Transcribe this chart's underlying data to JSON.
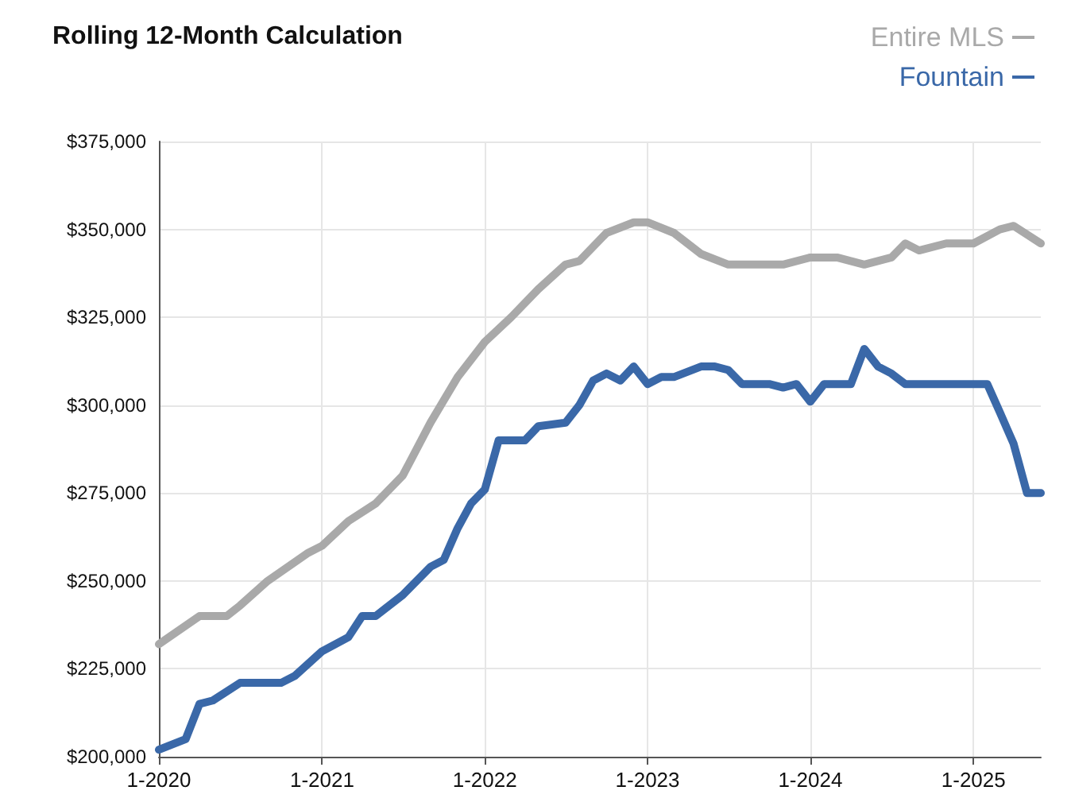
{
  "chart_data": {
    "type": "line",
    "title": "Rolling 12-Month Calculation",
    "legend": "top right",
    "grid": true,
    "marker": "none",
    "line_style": "solid",
    "xlim": [
      "2020-01",
      "2025-06"
    ],
    "xticks": [
      {
        "value": "2020-01",
        "label": "1-2020"
      },
      {
        "value": "2021-01",
        "label": "1-2021"
      },
      {
        "value": "2022-01",
        "label": "1-2022"
      },
      {
        "value": "2023-01",
        "label": "1-2023"
      },
      {
        "value": "2024-01",
        "label": "1-2024"
      },
      {
        "value": "2025-01",
        "label": "1-2025"
      }
    ],
    "ylim": [
      200000,
      375000
    ],
    "yticks": [
      {
        "value": 200000,
        "label": "$200,000"
      },
      {
        "value": 225000,
        "label": "$225,000"
      },
      {
        "value": 250000,
        "label": "$250,000"
      },
      {
        "value": 275000,
        "label": "$275,000"
      },
      {
        "value": 300000,
        "label": "$300,000"
      },
      {
        "value": 325000,
        "label": "$325,000"
      },
      {
        "value": 350000,
        "label": "$350,000"
      },
      {
        "value": 375000,
        "label": "$375,000"
      }
    ],
    "series": [
      {
        "name": "Entire MLS",
        "color": "#a9a9a9",
        "x": [
          "2020-01",
          "2020-04",
          "2020-06",
          "2020-07",
          "2020-09",
          "2020-12",
          "2021-01",
          "2021-03",
          "2021-05",
          "2021-07",
          "2021-09",
          "2021-11",
          "2022-01",
          "2022-03",
          "2022-05",
          "2022-07",
          "2022-08",
          "2022-10",
          "2022-12",
          "2023-01",
          "2023-03",
          "2023-05",
          "2023-07",
          "2023-09",
          "2023-11",
          "2024-01",
          "2024-03",
          "2024-05",
          "2024-07",
          "2024-08",
          "2024-09",
          "2024-11",
          "2025-01",
          "2025-03",
          "2025-04",
          "2025-06"
        ],
        "values": [
          232000,
          240000,
          240000,
          243000,
          250000,
          258000,
          260000,
          267000,
          272000,
          280000,
          295000,
          308000,
          318000,
          325000,
          333000,
          340000,
          341000,
          349000,
          352000,
          352000,
          349000,
          343000,
          340000,
          340000,
          340000,
          342000,
          342000,
          340000,
          342000,
          346000,
          344000,
          346000,
          346000,
          350000,
          351000,
          346000
        ]
      },
      {
        "name": "Fountain",
        "color": "#3a68a8",
        "x": [
          "2020-01",
          "2020-03",
          "2020-04",
          "2020-05",
          "2020-07",
          "2020-10",
          "2020-11",
          "2021-01",
          "2021-03",
          "2021-04",
          "2021-05",
          "2021-07",
          "2021-09",
          "2021-10",
          "2021-11",
          "2021-12",
          "2022-01",
          "2022-02",
          "2022-04",
          "2022-05",
          "2022-07",
          "2022-08",
          "2022-09",
          "2022-10",
          "2022-11",
          "2022-12",
          "2023-01",
          "2023-02",
          "2023-03",
          "2023-05",
          "2023-06",
          "2023-07",
          "2023-08",
          "2023-10",
          "2023-11",
          "2023-12",
          "2024-01",
          "2024-02",
          "2024-04",
          "2024-05",
          "2024-06",
          "2024-07",
          "2024-08",
          "2025-01",
          "2025-02",
          "2025-03",
          "2025-04",
          "2025-05",
          "2025-06"
        ],
        "values": [
          202000,
          205000,
          215000,
          216000,
          221000,
          221000,
          223000,
          230000,
          234000,
          240000,
          240000,
          246000,
          254000,
          256000,
          265000,
          272000,
          276000,
          290000,
          290000,
          294000,
          295000,
          300000,
          307000,
          309000,
          307000,
          311000,
          306000,
          308000,
          308000,
          311000,
          311000,
          310000,
          306000,
          306000,
          305000,
          306000,
          301000,
          306000,
          306000,
          316000,
          311000,
          309000,
          306000,
          306000,
          306000,
          298000,
          289000,
          275000,
          275000
        ]
      }
    ]
  }
}
